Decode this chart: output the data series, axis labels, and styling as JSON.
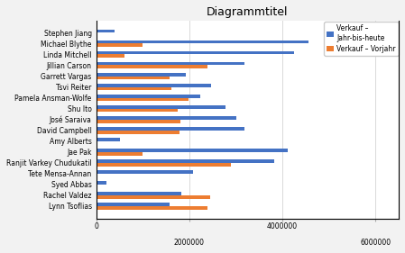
{
  "title": "Diagrammtitel",
  "categories": [
    "Lynn Tsoflias",
    "Rachel Valdez",
    "Syed Abbas",
    "Tete Mensa-Annan",
    "Ranjit Varkey Chudukatil",
    "Jae Pak",
    "Amy Alberts",
    "David Campbell",
    "José Saraiva",
    "Shu Ito",
    "Pamela Ansman-Wolfe",
    "Tsvi Reiter",
    "Garrett Vargas",
    "Jillian Carson",
    "Linda Mitchell",
    "Michael Blythe",
    "Stephen Jiang"
  ],
  "verkauf_ytd": [
    1576562,
    1827067,
    219088,
    2073505,
    3827950,
    4116871,
    503555,
    3189418,
    3018725,
    2771972,
    2241204,
    2467219,
    1931620,
    3189418,
    4251370,
    4557045,
    394151
  ],
  "verkauf_vorjahr": [
    2396540,
    2449684,
    0,
    0,
    2894354,
    1000000,
    0,
    1790630,
    1811766,
    1748523,
    1983408,
    1621258,
    1575167,
    2396540,
    600000,
    1000000,
    0
  ],
  "color_ytd": "#4472C4",
  "color_prev": "#ED7D31",
  "legend_ytd": "Verkauf –\nJahr-bis-heute",
  "legend_prev": "Verkauf – Vorjahr",
  "xlim": [
    0,
    6500000
  ],
  "xticks": [
    0,
    2000000,
    4000000,
    6000000
  ],
  "xtick_labels_top": [
    "0",
    "4000000"
  ],
  "xtick_labels_bottom": [
    "2000000",
    "6000000"
  ],
  "background_color": "#F2F2F2",
  "plot_bg_color": "#FFFFFF",
  "grid_color": "#D9D9D9",
  "font_size_title": 9,
  "font_size_labels": 5.5,
  "font_size_ticks": 5.5
}
